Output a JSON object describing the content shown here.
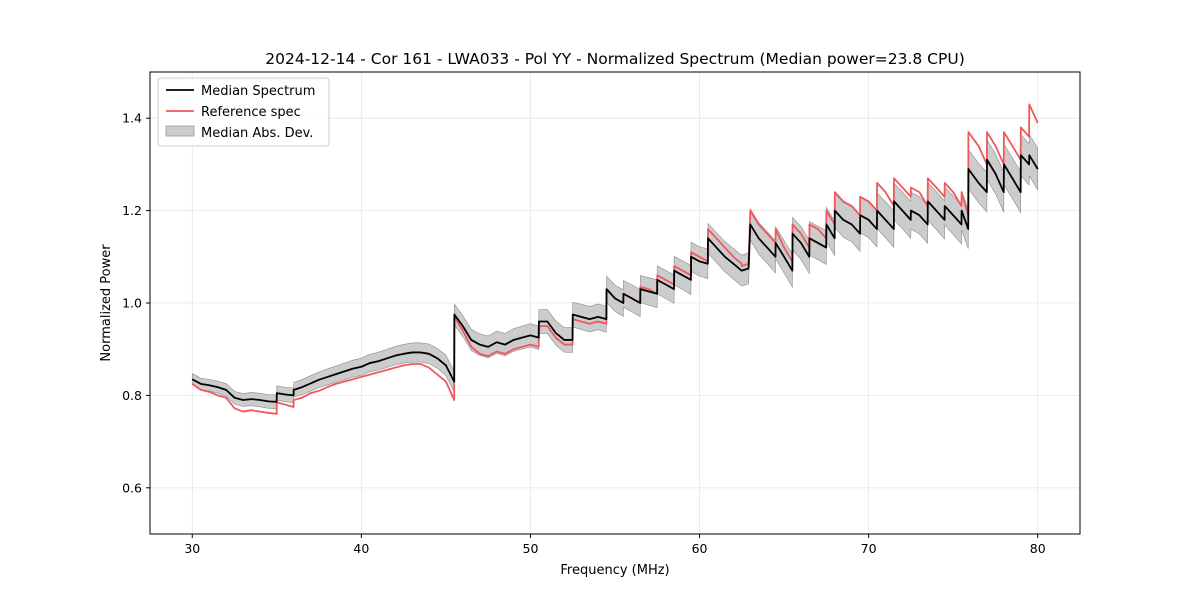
{
  "chart_data": {
    "type": "line",
    "title": "2024-12-14 - Cor 161 - LWA033 - Pol YY - Normalized Spectrum (Median power=23.8 CPU)",
    "xlabel": "Frequency (MHz)",
    "ylabel": "Normalized Power",
    "xlim": [
      27.5,
      82.5
    ],
    "ylim": [
      0.5,
      1.5
    ],
    "xticks": [
      30,
      40,
      50,
      60,
      70,
      80
    ],
    "yticks": [
      0.6,
      0.8,
      1.0,
      1.2,
      1.4
    ],
    "xtick_labels": [
      "30",
      "40",
      "50",
      "60",
      "70",
      "80"
    ],
    "ytick_labels": [
      "0.6",
      "0.8",
      "1.0",
      "1.2",
      "1.4"
    ],
    "grid": true,
    "legend_position": "top-left",
    "legend": [
      "Median Spectrum",
      "Reference spec",
      "Median Abs. Dev."
    ],
    "colors": {
      "median": "#000000",
      "reference": "#f0585c",
      "mad_fill": "#bfbfbf",
      "mad_edge": "#8c8c8c"
    },
    "series": [
      {
        "name": "Median Spectrum",
        "x": [
          30.0,
          30.5,
          31.0,
          31.5,
          32.0,
          32.5,
          33.0,
          33.5,
          34.0,
          34.5,
          34.99,
          35.0,
          35.5,
          35.99,
          36.0,
          36.5,
          37.0,
          37.5,
          38.0,
          38.5,
          39.0,
          39.5,
          40.0,
          40.5,
          41.0,
          41.5,
          42.0,
          42.5,
          43.0,
          43.5,
          44.0,
          44.5,
          45.0,
          45.49,
          45.5,
          46.0,
          46.5,
          47.0,
          47.5,
          48.0,
          48.5,
          49.0,
          49.5,
          50.0,
          50.49,
          50.5,
          51.0,
          51.5,
          52.0,
          52.49,
          52.5,
          53.0,
          53.5,
          54.0,
          54.49,
          54.5,
          55.0,
          55.49,
          55.5,
          56.0,
          56.49,
          56.5,
          57.0,
          57.49,
          57.5,
          58.0,
          58.49,
          58.5,
          59.0,
          59.49,
          59.5,
          60.0,
          60.49,
          60.5,
          61.0,
          61.5,
          62.0,
          62.49,
          62.5,
          62.9,
          63.0,
          63.5,
          64.0,
          64.49,
          64.5,
          65.0,
          65.49,
          65.5,
          66.0,
          66.49,
          66.5,
          67.0,
          67.49,
          67.5,
          67.99,
          68.0,
          68.5,
          69.0,
          69.49,
          69.5,
          70.0,
          70.49,
          70.5,
          71.0,
          71.49,
          71.5,
          72.0,
          72.49,
          72.5,
          73.0,
          73.49,
          73.5,
          74.0,
          74.49,
          74.5,
          75.0,
          75.49,
          75.5,
          75.89,
          75.9,
          76.5,
          76.99,
          77.0,
          77.5,
          77.99,
          78.0,
          78.5,
          78.99,
          79.0,
          79.49,
          79.5,
          80.0
        ],
        "values": [
          0.835,
          0.825,
          0.822,
          0.818,
          0.812,
          0.795,
          0.79,
          0.792,
          0.79,
          0.787,
          0.786,
          0.805,
          0.802,
          0.8,
          0.812,
          0.818,
          0.826,
          0.834,
          0.84,
          0.846,
          0.852,
          0.858,
          0.862,
          0.87,
          0.874,
          0.88,
          0.886,
          0.89,
          0.893,
          0.893,
          0.89,
          0.88,
          0.865,
          0.83,
          0.975,
          0.95,
          0.92,
          0.91,
          0.905,
          0.915,
          0.91,
          0.92,
          0.925,
          0.93,
          0.925,
          0.96,
          0.96,
          0.935,
          0.92,
          0.92,
          0.975,
          0.97,
          0.965,
          0.97,
          0.965,
          1.03,
          1.01,
          1.0,
          1.02,
          1.01,
          1.0,
          1.03,
          1.025,
          1.02,
          1.05,
          1.04,
          1.03,
          1.07,
          1.06,
          1.05,
          1.1,
          1.09,
          1.085,
          1.14,
          1.12,
          1.1,
          1.085,
          1.07,
          1.07,
          1.075,
          1.17,
          1.14,
          1.12,
          1.1,
          1.13,
          1.1,
          1.07,
          1.15,
          1.13,
          1.1,
          1.14,
          1.13,
          1.12,
          1.17,
          1.14,
          1.2,
          1.18,
          1.17,
          1.15,
          1.19,
          1.18,
          1.16,
          1.2,
          1.18,
          1.16,
          1.22,
          1.2,
          1.18,
          1.2,
          1.19,
          1.17,
          1.22,
          1.2,
          1.18,
          1.21,
          1.19,
          1.17,
          1.2,
          1.16,
          1.29,
          1.26,
          1.24,
          1.31,
          1.28,
          1.24,
          1.3,
          1.27,
          1.24,
          1.32,
          1.3,
          1.32,
          1.29
        ]
      },
      {
        "name": "Reference spec",
        "x": [
          30.0,
          30.5,
          31.0,
          31.5,
          32.0,
          32.5,
          33.0,
          33.5,
          34.0,
          34.5,
          34.99,
          35.0,
          35.5,
          35.99,
          36.0,
          36.5,
          37.0,
          37.5,
          38.0,
          38.5,
          39.0,
          39.5,
          40.0,
          40.5,
          41.0,
          41.5,
          42.0,
          42.5,
          43.0,
          43.5,
          44.0,
          44.5,
          45.0,
          45.49,
          45.5,
          46.0,
          46.5,
          47.0,
          47.5,
          48.0,
          48.5,
          49.0,
          49.5,
          50.0,
          50.49,
          50.5,
          51.0,
          51.5,
          52.0,
          52.49,
          52.5,
          53.0,
          53.5,
          54.0,
          54.49,
          54.5,
          55.0,
          55.49,
          55.5,
          56.0,
          56.49,
          56.5,
          57.0,
          57.49,
          57.5,
          58.0,
          58.49,
          58.5,
          59.0,
          59.49,
          59.5,
          60.0,
          60.49,
          60.5,
          61.0,
          61.5,
          62.0,
          62.49,
          62.5,
          62.9,
          63.0,
          63.5,
          64.0,
          64.49,
          64.5,
          65.0,
          65.49,
          65.5,
          66.0,
          66.49,
          66.5,
          67.0,
          67.49,
          67.5,
          67.99,
          68.0,
          68.5,
          69.0,
          69.49,
          69.5,
          70.0,
          70.49,
          70.5,
          71.0,
          71.49,
          71.5,
          72.0,
          72.49,
          72.5,
          73.0,
          73.49,
          73.5,
          74.0,
          74.49,
          74.5,
          75.0,
          75.49,
          75.5,
          75.89,
          75.9,
          76.5,
          76.99,
          77.0,
          77.5,
          77.99,
          78.0,
          78.5,
          78.99,
          79.0,
          79.49,
          79.5,
          80.0
        ],
        "values": [
          0.825,
          0.812,
          0.808,
          0.8,
          0.795,
          0.772,
          0.765,
          0.768,
          0.765,
          0.762,
          0.76,
          0.785,
          0.78,
          0.775,
          0.79,
          0.795,
          0.805,
          0.81,
          0.818,
          0.825,
          0.83,
          0.835,
          0.84,
          0.845,
          0.85,
          0.855,
          0.86,
          0.865,
          0.868,
          0.868,
          0.86,
          0.845,
          0.83,
          0.79,
          0.97,
          0.94,
          0.905,
          0.89,
          0.885,
          0.895,
          0.89,
          0.9,
          0.905,
          0.91,
          0.905,
          0.95,
          0.95,
          0.925,
          0.91,
          0.91,
          0.965,
          0.96,
          0.955,
          0.96,
          0.955,
          1.03,
          1.01,
          1.0,
          1.02,
          1.01,
          1.0,
          1.035,
          1.03,
          1.02,
          1.06,
          1.05,
          1.04,
          1.08,
          1.07,
          1.06,
          1.11,
          1.1,
          1.09,
          1.16,
          1.14,
          1.12,
          1.1,
          1.085,
          1.08,
          1.085,
          1.2,
          1.17,
          1.15,
          1.13,
          1.16,
          1.12,
          1.09,
          1.17,
          1.15,
          1.12,
          1.17,
          1.16,
          1.14,
          1.2,
          1.17,
          1.24,
          1.22,
          1.21,
          1.19,
          1.23,
          1.22,
          1.2,
          1.26,
          1.24,
          1.21,
          1.27,
          1.25,
          1.23,
          1.25,
          1.24,
          1.21,
          1.27,
          1.25,
          1.23,
          1.26,
          1.24,
          1.21,
          1.24,
          1.19,
          1.37,
          1.34,
          1.3,
          1.37,
          1.34,
          1.3,
          1.37,
          1.34,
          1.31,
          1.38,
          1.36,
          1.43,
          1.39
        ]
      }
    ],
    "band": {
      "name": "Median Abs. Dev.",
      "half_width_start": 0.012,
      "half_width_end": 0.045
    }
  }
}
